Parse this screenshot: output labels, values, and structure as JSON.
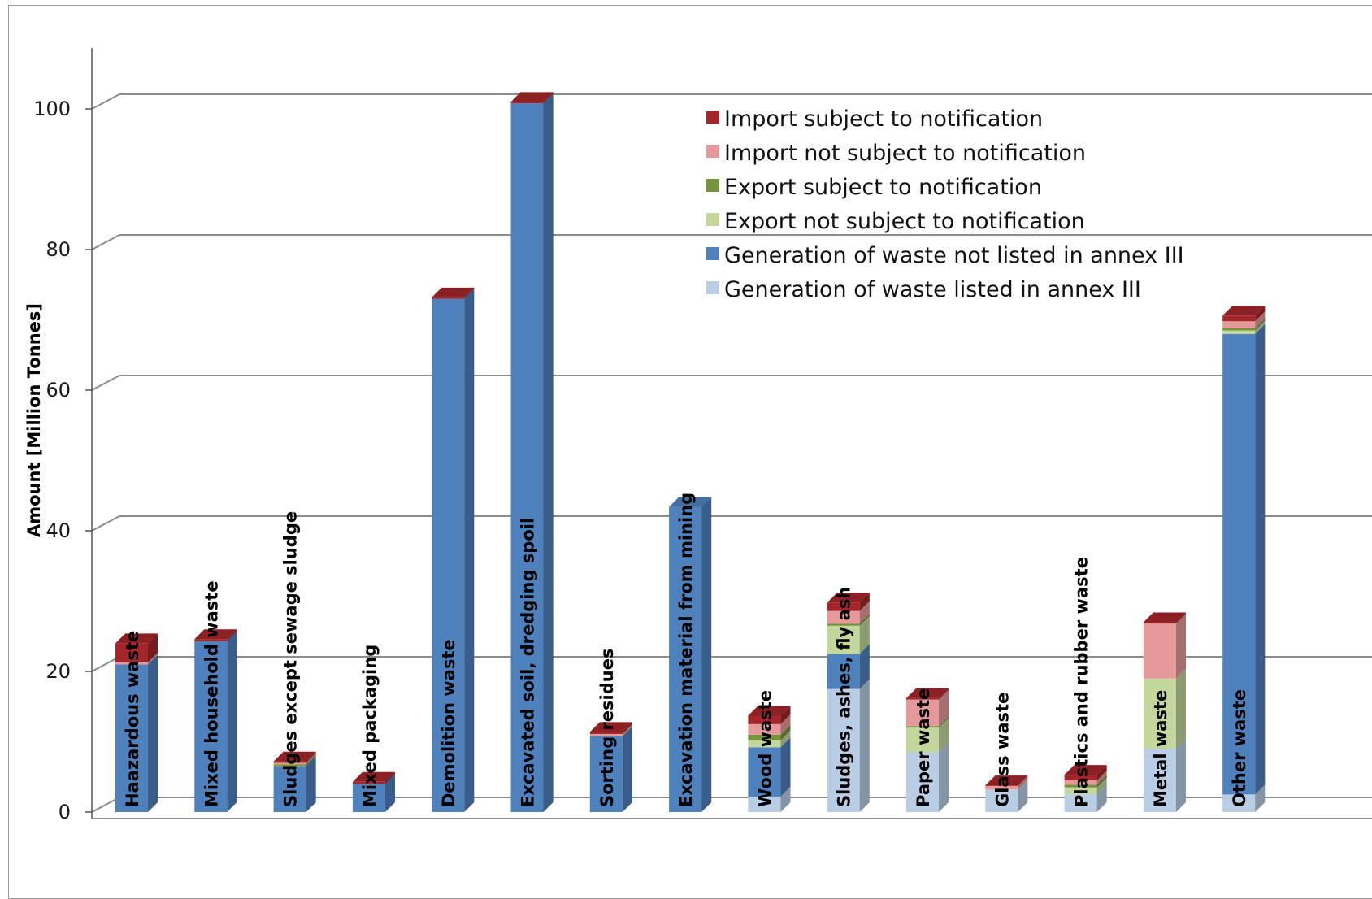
{
  "chart_data": {
    "type": "bar",
    "stacked": true,
    "three_d": true,
    "ylabel": "Amount [Million Tonnes]",
    "ylim": [
      0,
      100
    ],
    "yticks": [
      0,
      20,
      40,
      60,
      80,
      100
    ],
    "grid": true,
    "legend_position": "top-right",
    "categories": [
      "Haazardous waste",
      "Mixed household waste",
      "Sludges except sewage sludge",
      "Mixed packaging",
      "Demolition waste",
      "Excavated soil, dredging spoil",
      "Sorting residues",
      "Excavation material from mining",
      "Wood waste",
      "Sludges, ashes, fly ash",
      "Paper waste",
      "Glass waste",
      "Plastics and rubber waste",
      "Metal waste",
      "Other waste"
    ],
    "series": [
      {
        "name": "Generation of waste listed in annex III",
        "color": "#b9cde5",
        "values": [
          0,
          0,
          0,
          0,
          0,
          0,
          0,
          0,
          2.2,
          17.5,
          8.5,
          3.2,
          2.5,
          9.0,
          2.5
        ]
      },
      {
        "name": "Generation of waste not listed in annex III",
        "color": "#4f81bd",
        "values": [
          21.0,
          24.3,
          6.5,
          4.0,
          73.0,
          100.8,
          10.8,
          43.4,
          7.0,
          5.0,
          0,
          0,
          0,
          0,
          65.5
        ]
      },
      {
        "name": "Export not subject to notification",
        "color": "#c3d69b",
        "values": [
          0,
          0,
          0,
          0,
          0,
          0,
          0,
          0,
          1.0,
          4.0,
          3.5,
          0,
          1.0,
          10.0,
          0.5
        ]
      },
      {
        "name": "Export subject to notification",
        "color": "#77933c",
        "values": [
          0,
          0,
          0.3,
          0,
          0,
          0,
          0,
          0,
          0.8,
          0.3,
          0.2,
          0,
          0.4,
          0,
          0.3
        ]
      },
      {
        "name": "Import not subject to notification",
        "color": "#e6999a",
        "values": [
          0.3,
          0,
          0.2,
          0,
          0,
          0,
          0.3,
          0,
          1.5,
          1.8,
          3.8,
          0.5,
          0.6,
          7.8,
          1.0
        ]
      },
      {
        "name": "Import subject to notification",
        "color": "#a5262a",
        "values": [
          2.7,
          0.3,
          0.2,
          0.3,
          0.2,
          0.2,
          0.3,
          0,
          1.2,
          1.2,
          0.2,
          0.1,
          0.8,
          0.2,
          0.8
        ]
      }
    ],
    "legend_order": [
      5,
      4,
      3,
      2,
      1,
      0
    ]
  }
}
